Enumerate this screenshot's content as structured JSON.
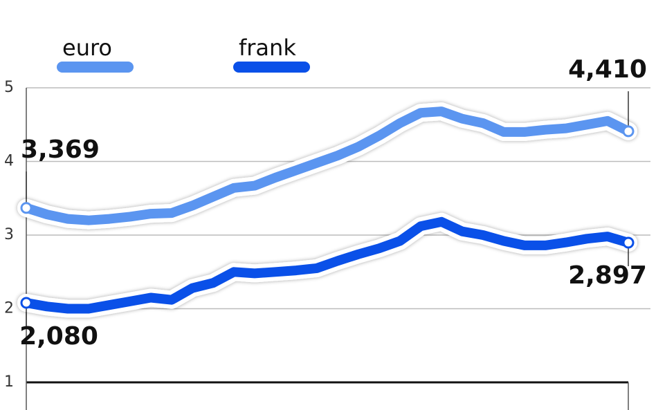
{
  "chart_data": {
    "type": "line",
    "series": [
      {
        "name": "euro",
        "color": "#5b95f0",
        "values": [
          3.369,
          3.28,
          3.22,
          3.2,
          3.22,
          3.25,
          3.29,
          3.3,
          3.4,
          3.52,
          3.64,
          3.67,
          3.78,
          3.88,
          3.98,
          4.08,
          4.2,
          4.35,
          4.52,
          4.66,
          4.68,
          4.58,
          4.52,
          4.4,
          4.4,
          4.43,
          4.45,
          4.5,
          4.55,
          4.41
        ],
        "value_labels": [
          "3,369",
          null,
          null,
          null,
          null,
          null,
          null,
          null,
          null,
          null,
          null,
          null,
          null,
          null,
          null,
          null,
          null,
          null,
          null,
          null,
          null,
          null,
          null,
          null,
          null,
          null,
          null,
          null,
          null,
          "4,410"
        ]
      },
      {
        "name": "frank",
        "color": "#0a50e8",
        "values": [
          2.08,
          2.03,
          2.0,
          2.0,
          2.05,
          2.1,
          2.15,
          2.12,
          2.28,
          2.35,
          2.5,
          2.48,
          2.5,
          2.52,
          2.55,
          2.65,
          2.74,
          2.82,
          2.92,
          3.12,
          3.18,
          3.05,
          3.0,
          2.92,
          2.86,
          2.86,
          2.9,
          2.95,
          2.98,
          2.897
        ],
        "value_labels": [
          "2,080",
          null,
          null,
          null,
          null,
          null,
          null,
          null,
          null,
          null,
          null,
          null,
          null,
          null,
          null,
          null,
          null,
          null,
          null,
          null,
          null,
          null,
          null,
          null,
          null,
          null,
          null,
          null,
          null,
          "2,897"
        ]
      }
    ],
    "ylim": [
      1,
      5
    ],
    "yticks": [
      1,
      2,
      3,
      4,
      5
    ],
    "grid": true
  }
}
